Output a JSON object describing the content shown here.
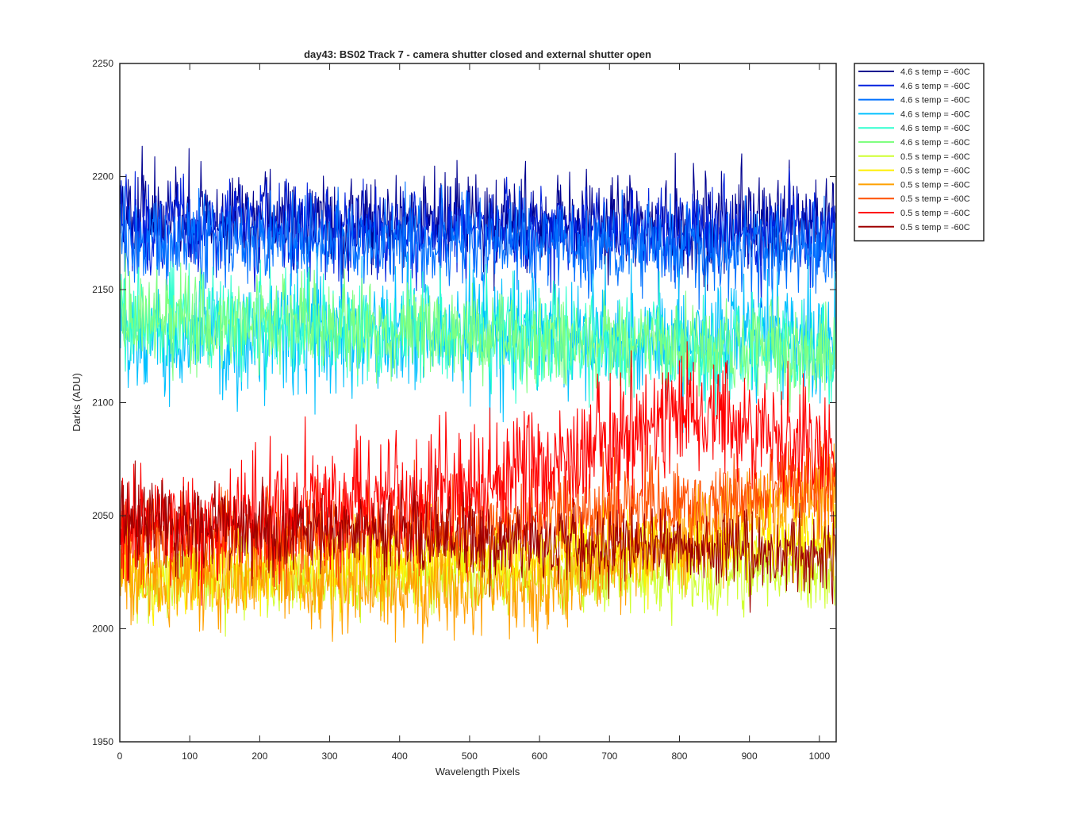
{
  "chart_data": {
    "type": "line",
    "title": "day43: BS02  Track 7 - camera shutter closed and external shutter open",
    "xlabel": "Wavelength Pixels",
    "ylabel": "Darks (ADU)",
    "xlim": [
      0,
      1024
    ],
    "ylim": [
      1950,
      2250
    ],
    "xticks": [
      0,
      100,
      200,
      300,
      400,
      500,
      600,
      700,
      800,
      900,
      1000
    ],
    "yticks": [
      1950,
      2000,
      2050,
      2100,
      2150,
      2200,
      2250
    ],
    "grid": false,
    "legend_position": "outside-top-right",
    "x_range_points": [
      1,
      1024
    ],
    "series": [
      {
        "name": "4.6 s temp = -60C",
        "color": "#00008f",
        "mean": 2182,
        "noise": 10,
        "trend": [
          [
            0,
            2182
          ],
          [
            1024,
            2178
          ]
        ]
      },
      {
        "name": "4.6 s temp = -60C",
        "color": "#0020df",
        "mean": 2178,
        "noise": 10,
        "trend": [
          [
            0,
            2178
          ],
          [
            1024,
            2175
          ]
        ]
      },
      {
        "name": "4.6 s temp = -60C",
        "color": "#0070ff",
        "mean": 2170,
        "noise": 10,
        "trend": [
          [
            0,
            2172
          ],
          [
            1024,
            2168
          ]
        ]
      },
      {
        "name": "4.6 s temp = -60C",
        "color": "#00c0ff",
        "mean": 2128,
        "noise": 13,
        "trend": [
          [
            0,
            2130
          ],
          [
            1024,
            2128
          ]
        ]
      },
      {
        "name": "4.6 s temp = -60C",
        "color": "#30ffcf",
        "mean": 2132,
        "noise": 11,
        "trend": [
          [
            0,
            2138
          ],
          [
            1024,
            2122
          ]
        ]
      },
      {
        "name": "4.6 s temp = -60C",
        "color": "#7fff80",
        "mean": 2134,
        "noise": 10,
        "trend": [
          [
            0,
            2138
          ],
          [
            1024,
            2122
          ]
        ]
      },
      {
        "name": "0.5 s temp = -60C",
        "color": "#cfff30",
        "mean": 2022,
        "noise": 8,
        "trend": [
          [
            0,
            2022
          ],
          [
            1024,
            2024
          ]
        ]
      },
      {
        "name": "0.5 s temp = -60C",
        "color": "#ffef00",
        "mean": 2026,
        "noise": 9,
        "trend": [
          [
            0,
            2024
          ],
          [
            1024,
            2040
          ]
        ]
      },
      {
        "name": "0.5 s temp = -60C",
        "color": "#ffa000",
        "mean": 2018,
        "noise": 10,
        "trend": [
          [
            0,
            2022
          ],
          [
            600,
            2018
          ],
          [
            1024,
            2062
          ]
        ]
      },
      {
        "name": "0.5 s temp = -60C",
        "color": "#ff5000",
        "mean": 2045,
        "noise": 10,
        "trend": [
          [
            0,
            2040
          ],
          [
            500,
            2045
          ],
          [
            1024,
            2065
          ]
        ]
      },
      {
        "name": "0.5 s temp = -60C",
        "color": "#ff0000",
        "mean": 2060,
        "noise": 13,
        "trend": [
          [
            0,
            2048
          ],
          [
            500,
            2060
          ],
          [
            800,
            2095
          ],
          [
            1024,
            2080
          ]
        ]
      },
      {
        "name": "0.5 s temp = -60C",
        "color": "#9f0000",
        "mean": 2045,
        "noise": 9,
        "trend": [
          [
            0,
            2048
          ],
          [
            500,
            2040
          ],
          [
            1024,
            2032
          ]
        ]
      }
    ]
  }
}
